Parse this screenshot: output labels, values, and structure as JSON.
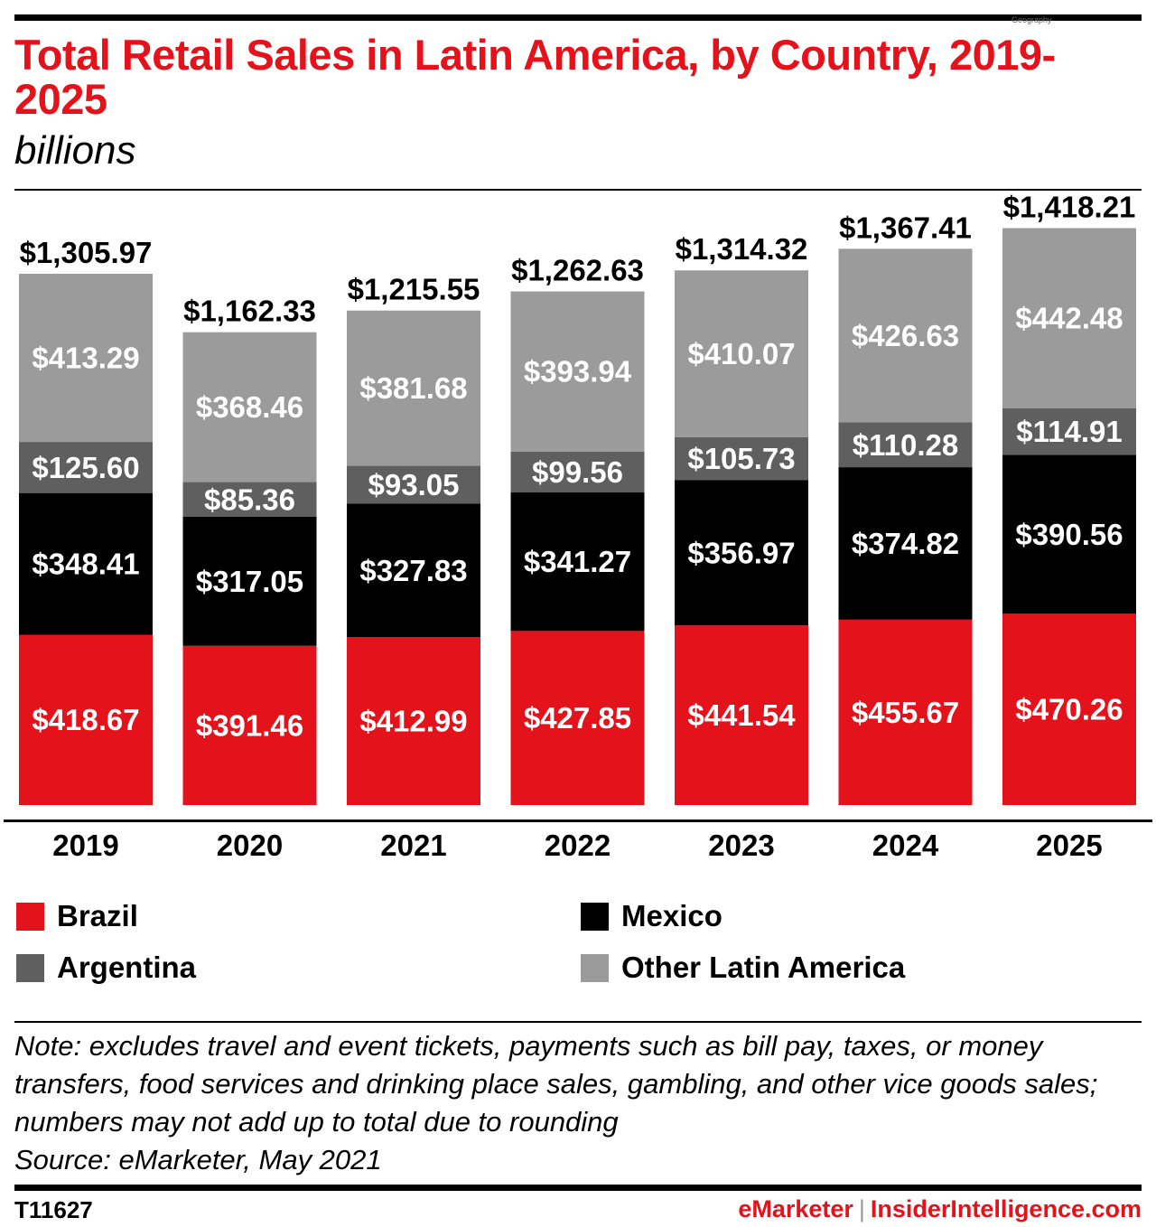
{
  "header": {
    "title": "Total Retail Sales in Latin America, by Country, 2019-2025",
    "subtitle": "billions",
    "tag": "Geography"
  },
  "chart_data": {
    "type": "bar",
    "stacked": true,
    "title": "Total Retail Sales in Latin America, by Country, 2019-2025",
    "subtitle": "billions",
    "categories": [
      "2019",
      "2020",
      "2021",
      "2022",
      "2023",
      "2024",
      "2025"
    ],
    "series": [
      {
        "name": "Brazil",
        "color": "#e3121b",
        "values": [
          418.67,
          391.46,
          412.99,
          427.85,
          441.54,
          455.67,
          470.26
        ],
        "labels": [
          "$418.67",
          "$391.46",
          "$412.99",
          "$427.85",
          "$441.54",
          "$455.67",
          "$470.26"
        ]
      },
      {
        "name": "Mexico",
        "color": "#000000",
        "values": [
          348.41,
          317.05,
          327.83,
          341.27,
          356.97,
          374.82,
          390.56
        ],
        "labels": [
          "$348.41",
          "$317.05",
          "$327.83",
          "$341.27",
          "$356.97",
          "$374.82",
          "$390.56"
        ]
      },
      {
        "name": "Argentina",
        "color": "#5f5f5f",
        "values": [
          125.6,
          85.36,
          93.05,
          99.56,
          105.73,
          110.28,
          114.91
        ],
        "labels": [
          "$125.60",
          "$85.36",
          "$93.05",
          "$99.56",
          "$105.73",
          "$110.28",
          "$114.91"
        ]
      },
      {
        "name": "Other Latin America",
        "color": "#9b9b9b",
        "values": [
          413.29,
          368.46,
          381.68,
          393.94,
          410.07,
          426.63,
          442.48
        ],
        "labels": [
          "$413.29",
          "$368.46",
          "$381.68",
          "$393.94",
          "$410.07",
          "$426.63",
          "$442.48"
        ]
      }
    ],
    "totals": [
      1305.97,
      1162.33,
      1215.55,
      1262.63,
      1314.32,
      1367.41,
      1418.21
    ],
    "total_labels": [
      "$1,305.97",
      "$1,162.33",
      "$1,215.55",
      "$1,262.63",
      "$1,314.32",
      "$1,367.41",
      "$1,418.21"
    ],
    "ylim": [
      0,
      1450
    ],
    "grid": false,
    "legend_position": "bottom"
  },
  "legend": {
    "items": [
      {
        "label": "Brazil",
        "color": "#e3121b"
      },
      {
        "label": "Mexico",
        "color": "#000000"
      },
      {
        "label": "Argentina",
        "color": "#5f5f5f"
      },
      {
        "label": "Other Latin America",
        "color": "#9b9b9b"
      }
    ]
  },
  "footer": {
    "note": "Note: excludes travel and event tickets, payments such as bill pay, taxes, or money transfers, food services and drinking place sales, gambling, and other vice goods sales; numbers may not add up to total due to rounding",
    "source": "Source: eMarketer, May 2021",
    "chart_id": "T11627",
    "brand_left": "eMarketer",
    "separator": "|",
    "brand_right": "InsiderIntelligence.com"
  }
}
